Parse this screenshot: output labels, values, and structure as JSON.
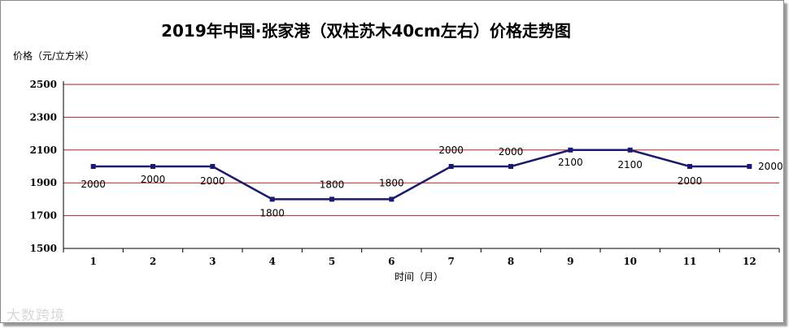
{
  "chart_data": {
    "type": "line",
    "title": "2019年中国·张家港（双柱苏木40cm左右）价格走势图",
    "ylabel": "价格（元/立方米）",
    "xlabel": "时间（月）",
    "categories": [
      "1",
      "2",
      "3",
      "4",
      "5",
      "6",
      "7",
      "8",
      "9",
      "10",
      "11",
      "12"
    ],
    "series": [
      {
        "values": [
          2000,
          2000,
          2000,
          1800,
          1800,
          1800,
          2000,
          2000,
          2100,
          2100,
          2000,
          2000
        ]
      }
    ],
    "data_labels": [
      "2000",
      "2000",
      "2000",
      "1800",
      "1800",
      "1800",
      "2000",
      "2000",
      "2100",
      "2100",
      "2000",
      "2000"
    ],
    "yticks": [
      "1500",
      "1700",
      "1900",
      "2100",
      "2300",
      "2500"
    ],
    "ylim": [
      1500,
      2500
    ],
    "grid": true,
    "colors": {
      "line": "#1a1a6e",
      "grid": "#b22222"
    }
  },
  "watermark": "大数跨境"
}
